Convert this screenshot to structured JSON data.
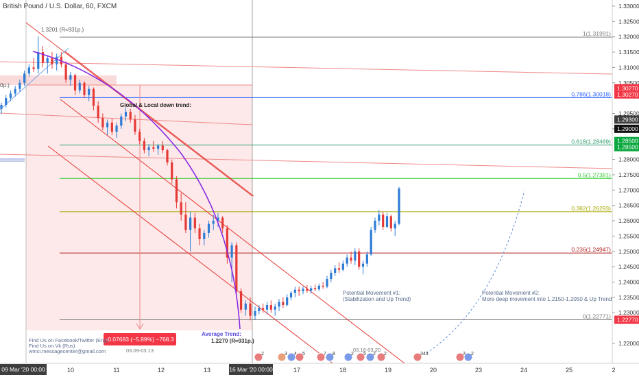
{
  "header": {
    "symbol_title": "British Pound / U.S. Dollar, 60, FXCM"
  },
  "chart_data": {
    "type": "candlestick",
    "title": "British Pound / U.S. Dollar, 60, FXCM",
    "y_axis": {
      "range": [
        1.2135,
        1.332
      ],
      "ticks": [
        "1.33000",
        "1.32500",
        "1.32000",
        "1.31500",
        "1.31000",
        "1.30500",
        "1.29500",
        "1.29000",
        "1.28000",
        "1.27500",
        "1.27000",
        "1.26500",
        "1.26000",
        "1.25500",
        "1.25000",
        "1.24500",
        "1.24000",
        "1.23500",
        "1.23000",
        "1.22000"
      ]
    },
    "x_axis": {
      "ticks": [
        "10",
        "11",
        "12",
        "13",
        "17",
        "18",
        "19",
        "20",
        "23",
        "24",
        "25",
        "2"
      ],
      "highlighted": [
        "09 Mar '20  00:00",
        "16 Mar '20  00:00"
      ]
    },
    "price_tags": [
      {
        "text": "1.30270",
        "price": 1.3032,
        "color": "#f23645"
      },
      {
        "text": "1.30270",
        "price": 1.3012,
        "color": "#f23645"
      },
      {
        "text": "1.29300",
        "price": 1.293,
        "color": "#3d3d3d"
      },
      {
        "text": "1.29000",
        "price": 1.29,
        "color": "#111111"
      },
      {
        "text": "1.28500",
        "price": 1.286,
        "color": "#0aa83f"
      },
      {
        "text": "1.28500",
        "price": 1.284,
        "color": "#0aa83f"
      },
      {
        "text": "1.22770",
        "price": 1.2277,
        "color": "#f23645"
      }
    ],
    "fib_levels": [
      {
        "label": "1(1.31991)",
        "price": 1.31991,
        "color": "#7a7a7a"
      },
      {
        "label": "0.786(1.30018)",
        "price": 1.30018,
        "color": "#2962ff"
      },
      {
        "label": "0.618(1.28469)",
        "price": 1.28469,
        "color": "#2e9e6e"
      },
      {
        "label": "0.5(1.27381)",
        "price": 1.27381,
        "color": "#33cc33"
      },
      {
        "label": "0.382(1.26293)",
        "price": 1.26293,
        "color": "#a6a600"
      },
      {
        "label": "0.236(1.24947)",
        "price": 1.24947,
        "color": "#b22222"
      },
      {
        "label": "0(1.22771)",
        "price": 1.22771,
        "color": "#7a7a7a"
      }
    ],
    "candles": [
      {
        "o": 1.2965,
        "h": 1.2985,
        "l": 1.2948,
        "c": 1.2978
      },
      {
        "o": 1.2978,
        "h": 1.301,
        "l": 1.297,
        "c": 1.3
      },
      {
        "o": 1.3,
        "h": 1.3025,
        "l": 1.299,
        "c": 1.3015
      },
      {
        "o": 1.3015,
        "h": 1.304,
        "l": 1.3005,
        "c": 1.303
      },
      {
        "o": 1.303,
        "h": 1.306,
        "l": 1.302,
        "c": 1.305
      },
      {
        "o": 1.305,
        "h": 1.309,
        "l": 1.304,
        "c": 1.308
      },
      {
        "o": 1.308,
        "h": 1.311,
        "l": 1.307,
        "c": 1.31
      },
      {
        "o": 1.31,
        "h": 1.313,
        "l": 1.3085,
        "c": 1.3095
      },
      {
        "o": 1.3095,
        "h": 1.3201,
        "l": 1.308,
        "c": 1.315
      },
      {
        "o": 1.315,
        "h": 1.317,
        "l": 1.31,
        "c": 1.3115
      },
      {
        "o": 1.3115,
        "h": 1.314,
        "l": 1.308,
        "c": 1.313
      },
      {
        "o": 1.313,
        "h": 1.315,
        "l": 1.3095,
        "c": 1.311
      },
      {
        "o": 1.311,
        "h": 1.3145,
        "l": 1.309,
        "c": 1.3135
      },
      {
        "o": 1.3135,
        "h": 1.315,
        "l": 1.31,
        "c": 1.311
      },
      {
        "o": 1.311,
        "h": 1.312,
        "l": 1.305,
        "c": 1.306
      },
      {
        "o": 1.306,
        "h": 1.3085,
        "l": 1.304,
        "c": 1.3075
      },
      {
        "o": 1.3075,
        "h": 1.308,
        "l": 1.301,
        "c": 1.3025
      },
      {
        "o": 1.3025,
        "h": 1.306,
        "l": 1.3015,
        "c": 1.305
      },
      {
        "o": 1.305,
        "h": 1.3055,
        "l": 1.3,
        "c": 1.301
      },
      {
        "o": 1.301,
        "h": 1.304,
        "l": 1.299,
        "c": 1.303
      },
      {
        "o": 1.303,
        "h": 1.3035,
        "l": 1.296,
        "c": 1.2975
      },
      {
        "o": 1.2975,
        "h": 1.299,
        "l": 1.292,
        "c": 1.2935
      },
      {
        "o": 1.2935,
        "h": 1.295,
        "l": 1.2895,
        "c": 1.2905
      },
      {
        "o": 1.2905,
        "h": 1.293,
        "l": 1.288,
        "c": 1.292
      },
      {
        "o": 1.292,
        "h": 1.2935,
        "l": 1.288,
        "c": 1.289
      },
      {
        "o": 1.289,
        "h": 1.292,
        "l": 1.287,
        "c": 1.291
      },
      {
        "o": 1.291,
        "h": 1.295,
        "l": 1.29,
        "c": 1.294
      },
      {
        "o": 1.294,
        "h": 1.297,
        "l": 1.2925,
        "c": 1.2955
      },
      {
        "o": 1.2955,
        "h": 1.2965,
        "l": 1.292,
        "c": 1.293
      },
      {
        "o": 1.293,
        "h": 1.2945,
        "l": 1.288,
        "c": 1.289
      },
      {
        "o": 1.289,
        "h": 1.29,
        "l": 1.285,
        "c": 1.286
      },
      {
        "o": 1.286,
        "h": 1.287,
        "l": 1.282,
        "c": 1.283
      },
      {
        "o": 1.283,
        "h": 1.285,
        "l": 1.281,
        "c": 1.284
      },
      {
        "o": 1.284,
        "h": 1.286,
        "l": 1.2825,
        "c": 1.2835
      },
      {
        "o": 1.2835,
        "h": 1.285,
        "l": 1.2815,
        "c": 1.2845
      },
      {
        "o": 1.2845,
        "h": 1.286,
        "l": 1.282,
        "c": 1.283
      },
      {
        "o": 1.283,
        "h": 1.2835,
        "l": 1.278,
        "c": 1.279
      },
      {
        "o": 1.279,
        "h": 1.28,
        "l": 1.272,
        "c": 1.2735
      },
      {
        "o": 1.2735,
        "h": 1.2745,
        "l": 1.264,
        "c": 1.266
      },
      {
        "o": 1.266,
        "h": 1.269,
        "l": 1.26,
        "c": 1.262
      },
      {
        "o": 1.262,
        "h": 1.266,
        "l": 1.256,
        "c": 1.257
      },
      {
        "o": 1.257,
        "h": 1.263,
        "l": 1.25,
        "c": 1.261
      },
      {
        "o": 1.261,
        "h": 1.2625,
        "l": 1.256,
        "c": 1.2575
      },
      {
        "o": 1.2575,
        "h": 1.259,
        "l": 1.252,
        "c": 1.254
      },
      {
        "o": 1.254,
        "h": 1.257,
        "l": 1.252,
        "c": 1.256
      },
      {
        "o": 1.256,
        "h": 1.26,
        "l": 1.2545,
        "c": 1.259
      },
      {
        "o": 1.259,
        "h": 1.262,
        "l": 1.257,
        "c": 1.26
      },
      {
        "o": 1.26,
        "h": 1.2625,
        "l": 1.258,
        "c": 1.261
      },
      {
        "o": 1.261,
        "h": 1.2615,
        "l": 1.256,
        "c": 1.2575
      },
      {
        "o": 1.2575,
        "h": 1.2585,
        "l": 1.246,
        "c": 1.248
      },
      {
        "o": 1.248,
        "h": 1.253,
        "l": 1.24,
        "c": 1.252
      },
      {
        "o": 1.252,
        "h": 1.253,
        "l": 1.235,
        "c": 1.237
      },
      {
        "o": 1.237,
        "h": 1.238,
        "l": 1.23,
        "c": 1.231
      },
      {
        "o": 1.231,
        "h": 1.234,
        "l": 1.229,
        "c": 1.233
      },
      {
        "o": 1.233,
        "h": 1.235,
        "l": 1.2275,
        "c": 1.229
      },
      {
        "o": 1.229,
        "h": 1.232,
        "l": 1.2277,
        "c": 1.2305
      },
      {
        "o": 1.2305,
        "h": 1.2325,
        "l": 1.2295,
        "c": 1.2315
      },
      {
        "o": 1.2315,
        "h": 1.233,
        "l": 1.23,
        "c": 1.231
      },
      {
        "o": 1.231,
        "h": 1.2335,
        "l": 1.2295,
        "c": 1.2325
      },
      {
        "o": 1.2325,
        "h": 1.234,
        "l": 1.23,
        "c": 1.231
      },
      {
        "o": 1.231,
        "h": 1.233,
        "l": 1.229,
        "c": 1.232
      },
      {
        "o": 1.232,
        "h": 1.2345,
        "l": 1.2305,
        "c": 1.2335
      },
      {
        "o": 1.2335,
        "h": 1.235,
        "l": 1.2315,
        "c": 1.2325
      },
      {
        "o": 1.2325,
        "h": 1.236,
        "l": 1.232,
        "c": 1.235
      },
      {
        "o": 1.235,
        "h": 1.237,
        "l": 1.234,
        "c": 1.2365
      },
      {
        "o": 1.2365,
        "h": 1.2385,
        "l": 1.235,
        "c": 1.2375
      },
      {
        "o": 1.2375,
        "h": 1.2385,
        "l": 1.2355,
        "c": 1.237
      },
      {
        "o": 1.237,
        "h": 1.2385,
        "l": 1.236,
        "c": 1.2378
      },
      {
        "o": 1.2378,
        "h": 1.239,
        "l": 1.2365,
        "c": 1.2372
      },
      {
        "o": 1.2372,
        "h": 1.2388,
        "l": 1.2362,
        "c": 1.238
      },
      {
        "o": 1.238,
        "h": 1.2392,
        "l": 1.237,
        "c": 1.2376
      },
      {
        "o": 1.2376,
        "h": 1.2395,
        "l": 1.2372,
        "c": 1.2388
      },
      {
        "o": 1.2388,
        "h": 1.24,
        "l": 1.2378,
        "c": 1.2385
      },
      {
        "o": 1.2385,
        "h": 1.242,
        "l": 1.238,
        "c": 1.241
      },
      {
        "o": 1.241,
        "h": 1.244,
        "l": 1.24,
        "c": 1.243
      },
      {
        "o": 1.243,
        "h": 1.2455,
        "l": 1.242,
        "c": 1.2445
      },
      {
        "o": 1.2445,
        "h": 1.2465,
        "l": 1.243,
        "c": 1.244
      },
      {
        "o": 1.244,
        "h": 1.247,
        "l": 1.2435,
        "c": 1.246
      },
      {
        "o": 1.246,
        "h": 1.249,
        "l": 1.245,
        "c": 1.248
      },
      {
        "o": 1.248,
        "h": 1.25,
        "l": 1.246,
        "c": 1.247
      },
      {
        "o": 1.247,
        "h": 1.251,
        "l": 1.2455,
        "c": 1.25
      },
      {
        "o": 1.25,
        "h": 1.251,
        "l": 1.244,
        "c": 1.245
      },
      {
        "o": 1.245,
        "h": 1.247,
        "l": 1.2425,
        "c": 1.246
      },
      {
        "o": 1.246,
        "h": 1.25,
        "l": 1.245,
        "c": 1.249
      },
      {
        "o": 1.249,
        "h": 1.258,
        "l": 1.2485,
        "c": 1.257
      },
      {
        "o": 1.257,
        "h": 1.261,
        "l": 1.256,
        "c": 1.26
      },
      {
        "o": 1.26,
        "h": 1.2635,
        "l": 1.2585,
        "c": 1.262
      },
      {
        "o": 1.262,
        "h": 1.263,
        "l": 1.257,
        "c": 1.258
      },
      {
        "o": 1.258,
        "h": 1.2625,
        "l": 1.2575,
        "c": 1.2615
      },
      {
        "o": 1.2615,
        "h": 1.262,
        "l": 1.2565,
        "c": 1.2575
      },
      {
        "o": 1.2575,
        "h": 1.26,
        "l": 1.255,
        "c": 1.259
      },
      {
        "o": 1.259,
        "h": 1.271,
        "l": 1.2585,
        "c": 1.2705
      }
    ],
    "annotations": {
      "high_label": "1.3201 (R≈931p.)",
      "trend_title": "Global & Local down trend:",
      "average_trend_title": "Average Trend:",
      "average_trend_value": "1.2270 (R≈931p.)",
      "measure_badge": "-0.07683 (−5.89%) −768.3",
      "measure_dates": "03.09-03.13",
      "dates_2": "03.16-03.20",
      "left_edge_label": "0p.)",
      "pm1_line1": "Potential Movement #1:",
      "pm1_line2": "(Stabilization and Up Trend)",
      "pm2_line1": "Potential Movement #2:",
      "pm2_line2": "More deep movement into 1.2150-1.2050 & Up Trend"
    },
    "footer_lines": [
      "Find Us on Facebook/Twitter (Eng)",
      "Find Us on Vk (Rus)",
      "wmci.messagecenter@gmail.com"
    ],
    "event_badges": [
      "2",
      "3",
      "4",
      "5",
      "7",
      "8",
      "2",
      "5",
      "2",
      "2",
      "343",
      "3",
      "2"
    ],
    "colors": {
      "up_candle": "#2e7bd6",
      "down_candle": "#e53935",
      "channel": "#e53935",
      "curve": "#8a2be2",
      "zone": "#fde7e7"
    }
  }
}
